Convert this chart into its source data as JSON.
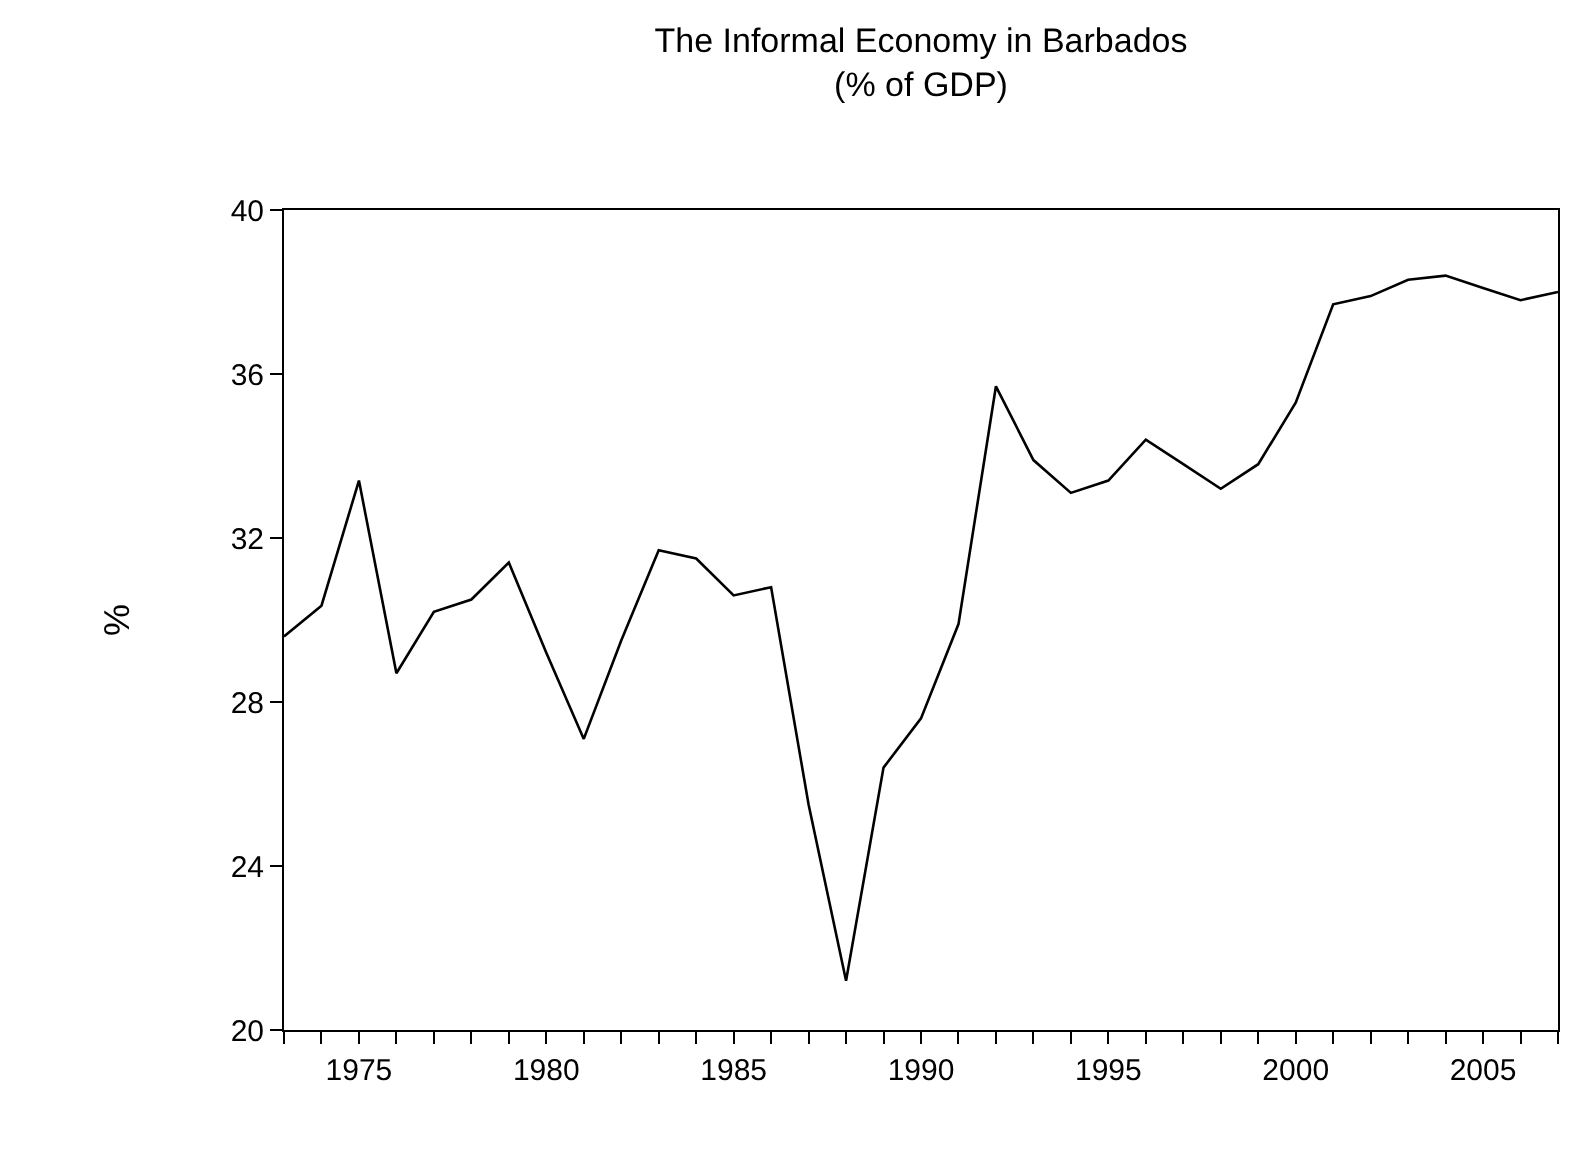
{
  "chart_data": {
    "type": "line",
    "title": "The Informal Economy in Barbados\n(% of GDP)",
    "ylabel": "%",
    "x": [
      1973,
      1974,
      1975,
      1976,
      1977,
      1978,
      1979,
      1980,
      1981,
      1982,
      1983,
      1984,
      1985,
      1986,
      1987,
      1988,
      1989,
      1990,
      1991,
      1992,
      1993,
      1994,
      1995,
      1996,
      1997,
      1998,
      1999,
      2000,
      2001,
      2002,
      2003,
      2004,
      2005,
      2006,
      2007
    ],
    "series": [
      {
        "color": "#000000",
        "values": [
          29.6,
          30.35,
          33.4,
          28.7,
          30.2,
          30.5,
          31.4,
          29.2,
          27.1,
          29.5,
          31.7,
          31.5,
          30.6,
          30.8,
          25.5,
          21.2,
          26.4,
          27.6,
          29.9,
          35.7,
          33.9,
          33.1,
          33.4,
          34.4,
          33.8,
          33.2,
          33.8,
          35.3,
          37.7,
          37.9,
          38.3,
          38.4,
          38.1,
          37.8,
          38.0
        ]
      }
    ],
    "xlim": [
      1973,
      2007
    ],
    "xticks": [
      {
        "value": 1973,
        "label": null
      },
      {
        "value": 1974,
        "label": null
      },
      1975,
      {
        "value": 1976,
        "label": null
      },
      {
        "value": 1977,
        "label": null
      },
      {
        "value": 1978,
        "label": null
      },
      {
        "value": 1979,
        "label": null
      },
      1980,
      {
        "value": 1981,
        "label": null
      },
      {
        "value": 1982,
        "label": null
      },
      {
        "value": 1983,
        "label": null
      },
      {
        "value": 1984,
        "label": null
      },
      1985,
      {
        "value": 1986,
        "label": null
      },
      {
        "value": 1987,
        "label": null
      },
      {
        "value": 1988,
        "label": null
      },
      {
        "value": 1989,
        "label": null
      },
      1990,
      {
        "value": 1991,
        "label": null
      },
      {
        "value": 1992,
        "label": null
      },
      {
        "value": 1993,
        "label": null
      },
      {
        "value": 1994,
        "label": null
      },
      1995,
      {
        "value": 1996,
        "label": null
      },
      {
        "value": 1997,
        "label": null
      },
      {
        "value": 1998,
        "label": null
      },
      {
        "value": 1999,
        "label": null
      },
      2000,
      {
        "value": 2001,
        "label": null
      },
      {
        "value": 2002,
        "label": null
      },
      {
        "value": 2003,
        "label": null
      },
      {
        "value": 2004,
        "label": null
      },
      2005,
      {
        "value": 2006,
        "label": null
      },
      {
        "value": 2007,
        "label": null
      }
    ],
    "ylim": [
      20,
      40
    ],
    "yticks": [
      20,
      24,
      28,
      32,
      36,
      40
    ],
    "legend": false,
    "marker": "none",
    "line_style": "solid"
  }
}
